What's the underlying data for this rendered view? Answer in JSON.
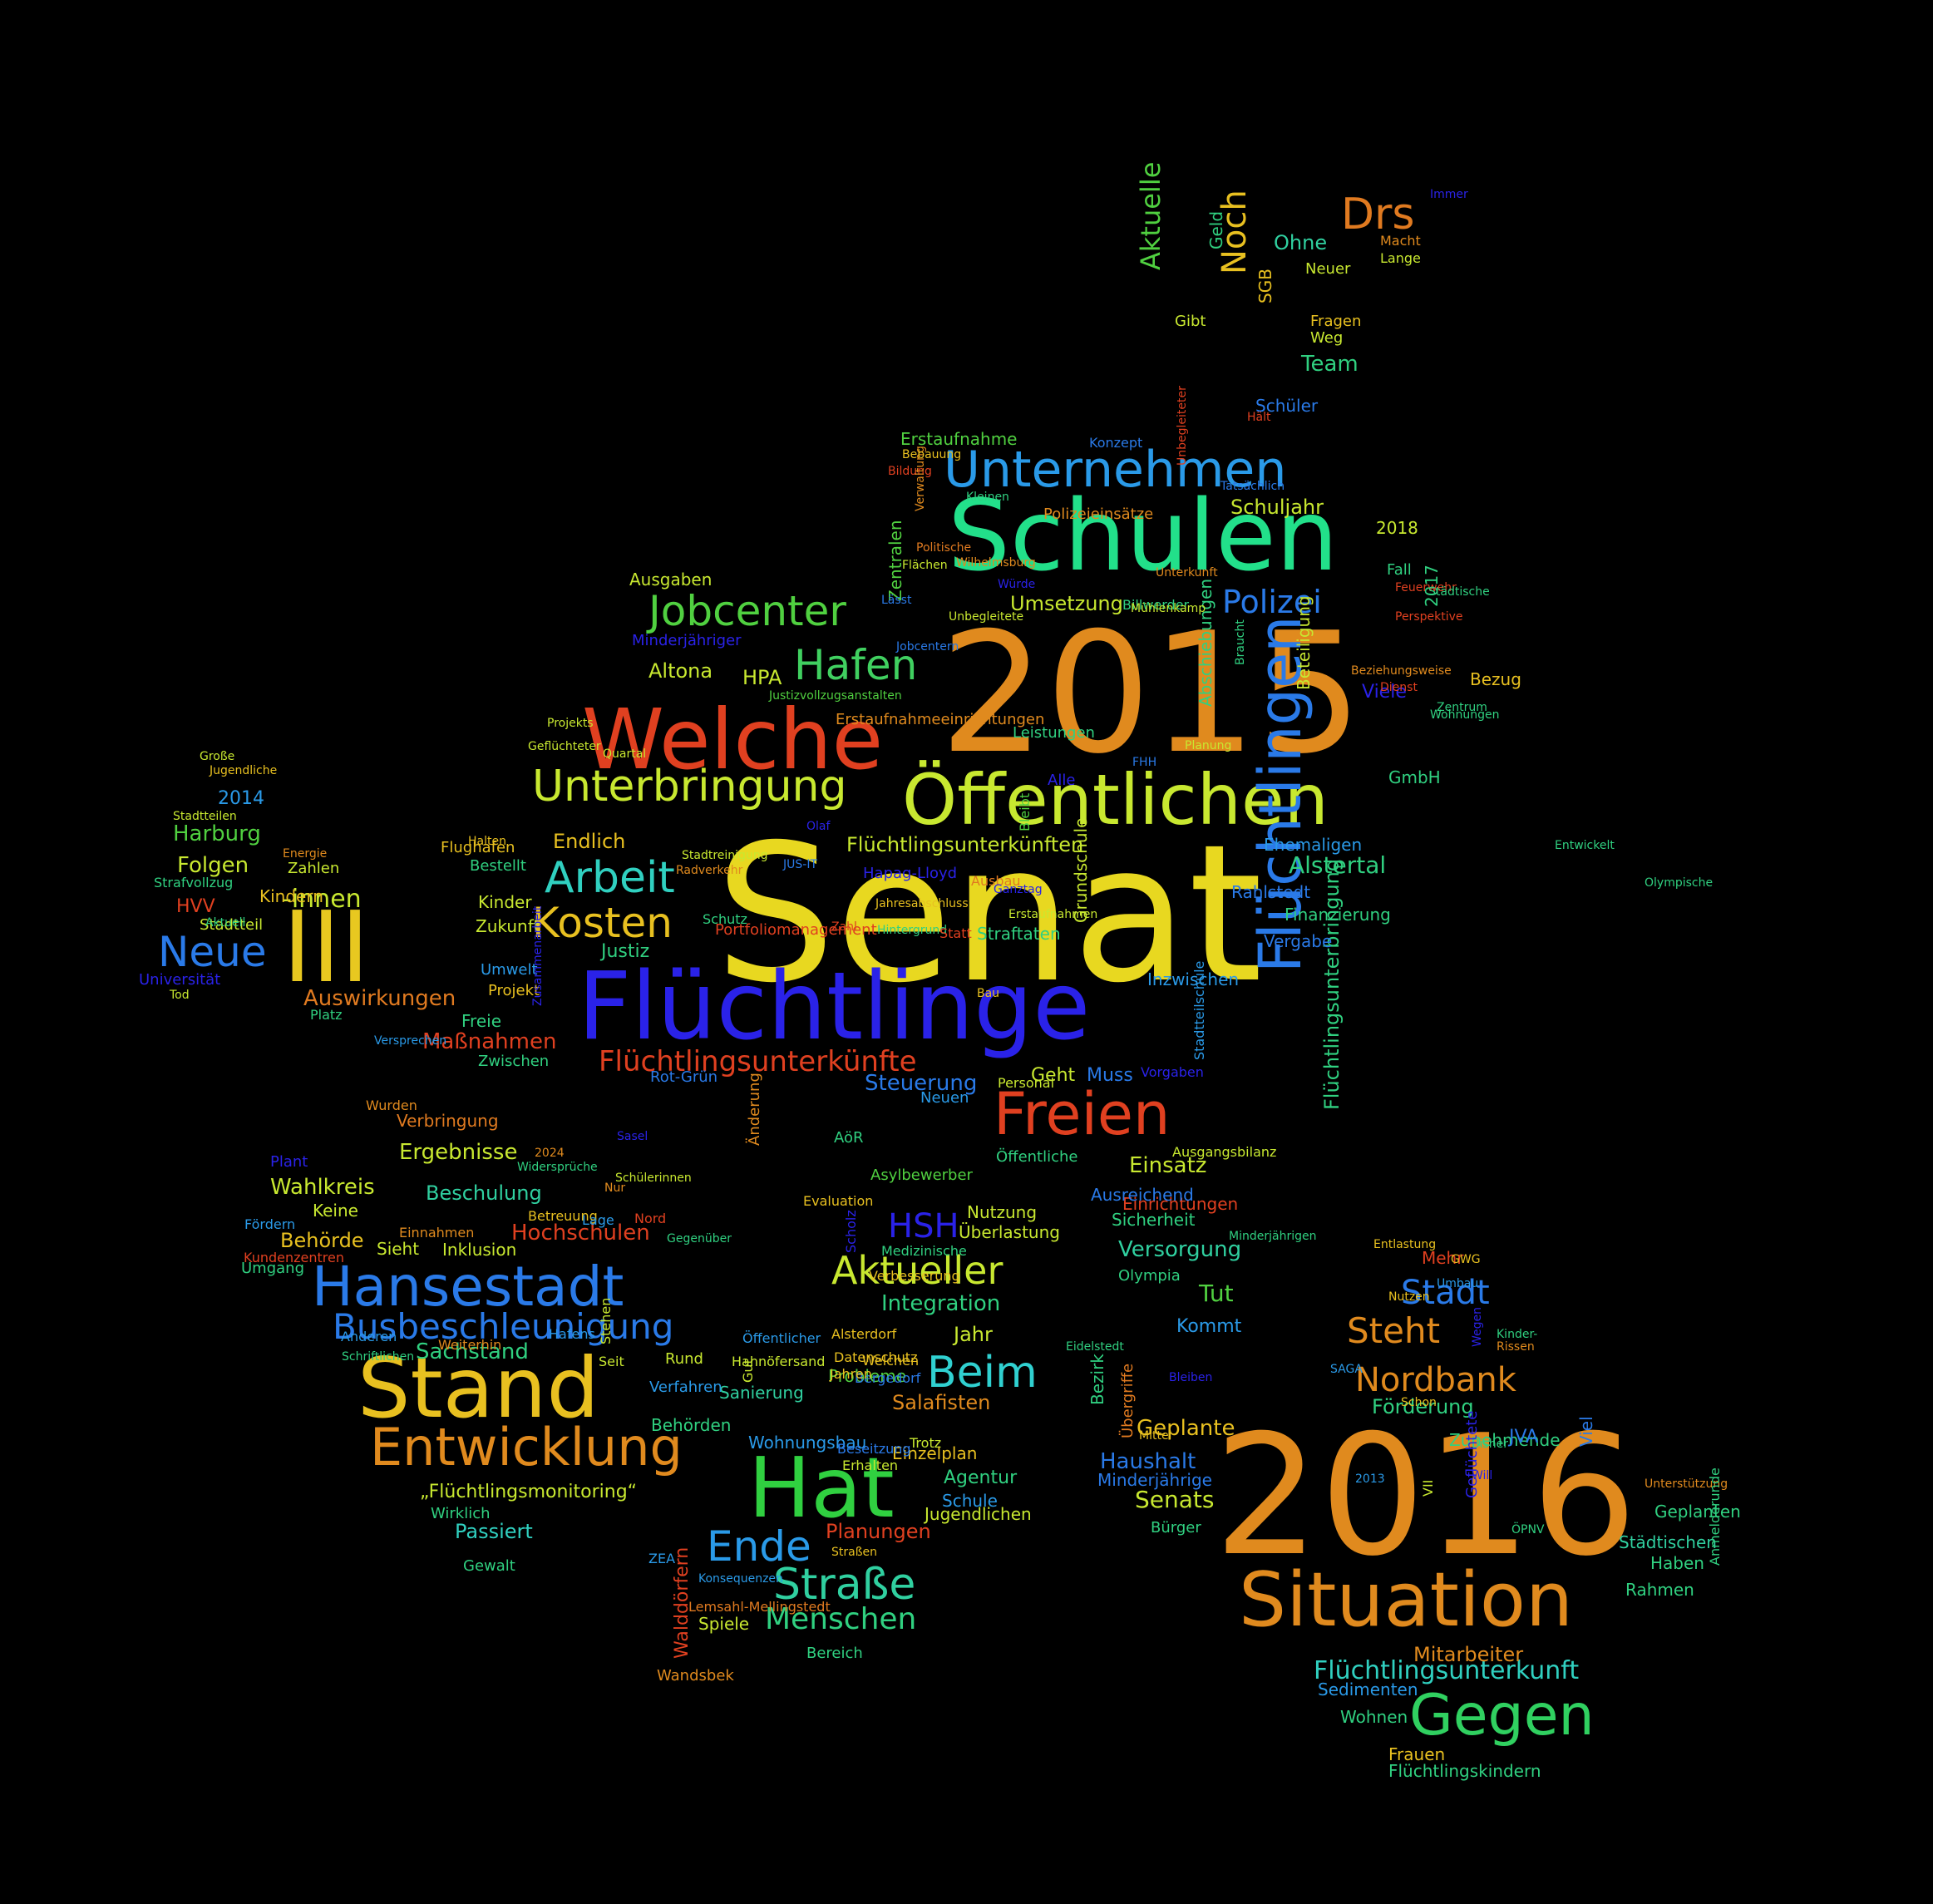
{
  "words": [
    {
      "text": "Senat",
      "color": "#e8d820"
    },
    {
      "text": "2015",
      "color": "#e08a1e"
    },
    {
      "text": "2016",
      "color": "#e08a1e"
    },
    {
      "text": "Flüchtlinge",
      "color": "#2a22e8"
    },
    {
      "text": "Schulen",
      "color": "#22e08a"
    },
    {
      "text": "Welche",
      "color": "#e04020"
    },
    {
      "text": "Öffentlichen",
      "color": "#c8e830"
    },
    {
      "text": "Flüchtlingen",
      "color": "#2a7ae8"
    },
    {
      "text": "Stand",
      "color": "#e8c020"
    },
    {
      "text": "Hat",
      "color": "#30d040"
    },
    {
      "text": "III",
      "color": "#e8c820"
    },
    {
      "text": "Situation",
      "color": "#e08a1e"
    },
    {
      "text": "Hansestadt",
      "color": "#2a7ae8"
    },
    {
      "text": "Unternehmen",
      "color": "#2a9ae8"
    },
    {
      "text": "Entwicklung",
      "color": "#e08a1e"
    },
    {
      "text": "Unterbringung",
      "color": "#c8e830"
    },
    {
      "text": "Freien",
      "color": "#e04020"
    },
    {
      "text": "Gegen",
      "color": "#30d060"
    },
    {
      "text": "Drs",
      "color": "#e07a20"
    },
    {
      "text": "Jobcenter",
      "color": "#50d040"
    },
    {
      "text": "Hafen",
      "color": "#40d060"
    },
    {
      "text": "Arbeit",
      "color": "#30d0c0"
    },
    {
      "text": "Kosten",
      "color": "#e8c020"
    },
    {
      "text": "Neue",
      "color": "#2a7ae8"
    },
    {
      "text": "Beim",
      "color": "#30d0d0"
    },
    {
      "text": "Straße",
      "color": "#30d0a0"
    },
    {
      "text": "Ende",
      "color": "#2a9ae8"
    },
    {
      "text": "Aktueller",
      "color": "#c8e830"
    },
    {
      "text": "Busbeschleunigung",
      "color": "#2a7ae8"
    },
    {
      "text": "Nordbank",
      "color": "#e08a1e"
    },
    {
      "text": "Steht",
      "color": "#e08a1e"
    },
    {
      "text": "Stadt",
      "color": "#2a7ae8"
    },
    {
      "text": "Polizei",
      "color": "#2a7ae8"
    },
    {
      "text": "Flüchtlingsunterkünfte",
      "color": "#e04020"
    },
    {
      "text": "Menschen",
      "color": "#30d080"
    },
    {
      "text": "Aktuelle",
      "color": "#50d040"
    },
    {
      "text": "Noch",
      "color": "#e8c020"
    },
    {
      "text": "HSH",
      "color": "#2a22e8"
    },
    {
      "text": "Flüchtlingsunterkunft",
      "color": "#30d0c0"
    },
    {
      "text": "Flüchtlingsunterkünften",
      "color": "#c8e830"
    },
    {
      "text": "Flüchtlingsunterbringung",
      "color": "#30d080"
    },
    {
      "text": "Senats",
      "color": "#c8e830"
    },
    {
      "text": "Haushalt",
      "color": "#2a7ae8"
    },
    {
      "text": "Geplante",
      "color": "#e8c020"
    },
    {
      "text": "Integration",
      "color": "#30d080"
    },
    {
      "text": "Hochschulen",
      "color": "#e04020"
    },
    {
      "text": "Harburg",
      "color": "#50d040"
    },
    {
      "text": "Folgen",
      "color": "#c8e830"
    },
    {
      "text": "-innen",
      "color": "#c8e830"
    },
    {
      "text": "Alstertal",
      "color": "#30d080"
    },
    {
      "text": "Auswirkungen",
      "color": "#e07a20"
    },
    {
      "text": "Maßnahmen",
      "color": "#e04020"
    },
    {
      "text": "Beschulung",
      "color": "#30d0a0"
    },
    {
      "text": "Wahlkreis",
      "color": "#c8e830"
    },
    {
      "text": "Ergebnisse",
      "color": "#c8e830"
    },
    {
      "text": "Versorgung",
      "color": "#30d0a0"
    },
    {
      "text": "Förderung",
      "color": "#30d080"
    },
    {
      "text": "Einsatz",
      "color": "#c8e830"
    },
    {
      "text": "Salafisten",
      "color": "#e08a1e"
    },
    {
      "text": "Planungen",
      "color": "#e04020"
    },
    {
      "text": "Mitarbeiter",
      "color": "#e08a1e"
    },
    {
      "text": "Endlich",
      "color": "#e8c020"
    },
    {
      "text": "Justiz",
      "color": "#30d080"
    },
    {
      "text": "Sachstand",
      "color": "#30d080"
    },
    {
      "text": "Behörde",
      "color": "#e8c020"
    },
    {
      "text": "Umsetzung",
      "color": "#c8e830"
    },
    {
      "text": "Schuljahr",
      "color": "#c8e830"
    },
    {
      "text": "Altona",
      "color": "#c8e830"
    },
    {
      "text": "HPA",
      "color": "#c8e830"
    },
    {
      "text": "Team",
      "color": "#30d080"
    },
    {
      "text": "Ohne",
      "color": "#30d0a0"
    },
    {
      "text": "Tut",
      "color": "#50d040"
    },
    {
      "text": "Kommt",
      "color": "#2a9ae8"
    },
    {
      "text": "Steuerung",
      "color": "#2a7ae8"
    },
    {
      "text": "Geht",
      "color": "#c8e830"
    },
    {
      "text": "Muss",
      "color": "#2a7ae8"
    },
    {
      "text": "Jahr",
      "color": "#c8e830"
    },
    {
      "text": "Passiert",
      "color": "#30d0c0"
    },
    {
      "text": "„Flüchtlingsmonitoring“",
      "color": "#c8e830"
    },
    {
      "text": "Probleme",
      "color": "#50d040"
    },
    {
      "text": "Sanierung",
      "color": "#30d0a0"
    },
    {
      "text": "Behörden",
      "color": "#30d080"
    },
    {
      "text": "Wohnungsbau",
      "color": "#2a9ae8"
    },
    {
      "text": "Einzelplan",
      "color": "#e8c020"
    },
    {
      "text": "Agentur",
      "color": "#30d080"
    },
    {
      "text": "Schule",
      "color": "#2a9ae8"
    },
    {
      "text": "Jugendlichen",
      "color": "#c8e830"
    },
    {
      "text": "Walddörfern",
      "color": "#e04020"
    },
    {
      "text": "Nutzung",
      "color": "#c8e830"
    },
    {
      "text": "Überlastung",
      "color": "#c8e830"
    },
    {
      "text": "Erstaufnahme",
      "color": "#50d040"
    },
    {
      "text": "Zentralen",
      "color": "#50d040"
    },
    {
      "text": "Flüchtlingskindern",
      "color": "#30d080"
    },
    {
      "text": "Frauen",
      "color": "#e8c020"
    },
    {
      "text": "Wohnen",
      "color": "#30d080"
    },
    {
      "text": "Sedimenten",
      "color": "#2a9ae8"
    },
    {
      "text": "Haben",
      "color": "#30d080"
    },
    {
      "text": "Rahmen",
      "color": "#30d080"
    },
    {
      "text": "Städtischen",
      "color": "#30d0a0"
    },
    {
      "text": "Geplanten",
      "color": "#30d080"
    },
    {
      "text": "Zunehmende",
      "color": "#30d080"
    },
    {
      "text": "Mehr",
      "color": "#e04020"
    },
    {
      "text": "Minderjährige",
      "color": "#2a7ae8"
    },
    {
      "text": "JVA",
      "color": "#2a7ae8"
    },
    {
      "text": "Viel",
      "color": "#2a7ae8"
    },
    {
      "text": "Wandsbek",
      "color": "#e08a1e"
    },
    {
      "text": "Bereich",
      "color": "#30d080"
    },
    {
      "text": "Spiele",
      "color": "#c8e830"
    },
    {
      "text": "Gewalt",
      "color": "#30d080"
    },
    {
      "text": "Wirklich",
      "color": "#30d080"
    },
    {
      "text": "Umgang",
      "color": "#30d080"
    },
    {
      "text": "Sieht",
      "color": "#c8e830"
    },
    {
      "text": "Inklusion",
      "color": "#c8e830"
    },
    {
      "text": "Keine",
      "color": "#c8e830"
    },
    {
      "text": "Plant",
      "color": "#2a22e8"
    },
    {
      "text": "Verbringung",
      "color": "#e07a20"
    },
    {
      "text": "Zwischen",
      "color": "#30d080"
    },
    {
      "text": "Freie",
      "color": "#30d080"
    },
    {
      "text": "Rot-Grün",
      "color": "#2a7ae8"
    },
    {
      "text": "Neuen",
      "color": "#2a9ae8"
    },
    {
      "text": "Öffentliche",
      "color": "#30d080"
    },
    {
      "text": "Bezirk",
      "color": "#30d080"
    },
    {
      "text": "Übergriffe",
      "color": "#e07a20"
    },
    {
      "text": "Sicherheit",
      "color": "#30d080"
    },
    {
      "text": "Einrichtungen",
      "color": "#e04020"
    },
    {
      "text": "Ausreichend",
      "color": "#2a7ae8"
    },
    {
      "text": "Olympia",
      "color": "#30d080"
    },
    {
      "text": "Zahlen",
      "color": "#c8e830"
    },
    {
      "text": "Strafvollzug",
      "color": "#30d080"
    },
    {
      "text": "HVV",
      "color": "#e04020"
    },
    {
      "text": "Stadtteil",
      "color": "#c8e830"
    },
    {
      "text": "Kindern",
      "color": "#e8c020"
    },
    {
      "text": "Kinder",
      "color": "#c8e830"
    },
    {
      "text": "Zukunft",
      "color": "#c8e830"
    },
    {
      "text": "Umwelt",
      "color": "#2a9ae8"
    },
    {
      "text": "Projekt",
      "color": "#e8c020"
    },
    {
      "text": "Flughafen",
      "color": "#e8c020"
    },
    {
      "text": "Bestellt",
      "color": "#30d080"
    },
    {
      "text": "Universität",
      "color": "#2a22e8"
    },
    {
      "text": "2014",
      "color": "#2a9ae8"
    },
    {
      "text": "Stadtteilen",
      "color": "#c8e830"
    },
    {
      "text": "Große",
      "color": "#c8e830"
    },
    {
      "text": "Jugendliche",
      "color": "#e8c020"
    },
    {
      "text": "Abschiebungen",
      "color": "#30d080"
    },
    {
      "text": "Beteiligung",
      "color": "#c8e830"
    },
    {
      "text": "2017",
      "color": "#30d080"
    },
    {
      "text": "Bezug",
      "color": "#e8c020"
    },
    {
      "text": "Viele",
      "color": "#2a22e8"
    },
    {
      "text": "GmbH",
      "color": "#30d080"
    },
    {
      "text": "Ehemaligen",
      "color": "#2a9ae8"
    },
    {
      "text": "Rahlstedt",
      "color": "#2a7ae8"
    },
    {
      "text": "Finanzierung",
      "color": "#30d080"
    },
    {
      "text": "Vergabe",
      "color": "#2a7ae8"
    },
    {
      "text": "Inzwischen",
      "color": "#2a9ae8"
    },
    {
      "text": "Grundschule",
      "color": "#c8e830"
    },
    {
      "text": "Straftaten",
      "color": "#30d080"
    },
    {
      "text": "Alle",
      "color": "#2a22e8"
    },
    {
      "text": "Leistungen",
      "color": "#30d080"
    },
    {
      "text": "2018",
      "color": "#c8e830"
    },
    {
      "text": "Fall",
      "color": "#30d080"
    },
    {
      "text": "Kleinen",
      "color": "#30d080"
    },
    {
      "text": "Polizeieinsätze",
      "color": "#e08a1e"
    },
    {
      "text": "Billwerder",
      "color": "#30d080"
    },
    {
      "text": "Macht",
      "color": "#e08a1e"
    },
    {
      "text": "Lange",
      "color": "#c8e830"
    },
    {
      "text": "Neuer",
      "color": "#c8e830"
    },
    {
      "text": "Immer",
      "color": "#2a22e8"
    },
    {
      "text": "Geld",
      "color": "#30d080"
    },
    {
      "text": "SGB",
      "color": "#e8c020"
    },
    {
      "text": "Schüler",
      "color": "#2a7ae8"
    },
    {
      "text": "Fragen",
      "color": "#e8c020"
    },
    {
      "text": "Weg",
      "color": "#c8e830"
    },
    {
      "text": "Gibt",
      "color": "#c8e830"
    },
    {
      "text": "Konzept",
      "color": "#2a7ae8"
    },
    {
      "text": "Ausgaben",
      "color": "#c8e830"
    },
    {
      "text": "Minderjähriger",
      "color": "#2a22e8"
    },
    {
      "text": "Beziehungsweise",
      "color": "#e08a1e"
    },
    {
      "text": "Erstaufnahmeeinrichtungen",
      "color": "#e08a1e"
    },
    {
      "text": "Hapag-Lloyd",
      "color": "#2a22e8"
    },
    {
      "text": "Ausbau",
      "color": "#e07a20"
    },
    {
      "text": "Schutz",
      "color": "#30d080"
    },
    {
      "text": "Hintergrund",
      "color": "#30d080"
    },
    {
      "text": "Statt",
      "color": "#e04020"
    },
    {
      "text": "Bau",
      "color": "#e8c020"
    },
    {
      "text": "Bleibt",
      "color": "#50d040"
    },
    {
      "text": "Personal",
      "color": "#c8e830"
    },
    {
      "text": "Stadtteilschule",
      "color": "#2a9ae8"
    },
    {
      "text": "Vorgaben",
      "color": "#2a22e8"
    },
    {
      "text": "Ausgangsbilanz",
      "color": "#c8e830"
    },
    {
      "text": "Asylbewerber",
      "color": "#50d040"
    },
    {
      "text": "AöR",
      "color": "#30d080"
    },
    {
      "text": "Änderung",
      "color": "#e08a1e"
    },
    {
      "text": "Evaluation",
      "color": "#e8c020"
    },
    {
      "text": "Scholz",
      "color": "#2a22e8"
    },
    {
      "text": "Medizinische",
      "color": "#30d080"
    },
    {
      "text": "Verbesserung",
      "color": "#e8c020"
    },
    {
      "text": "Alsterdorf",
      "color": "#e8c020"
    },
    {
      "text": "Datenschutz",
      "color": "#e8c020"
    },
    {
      "text": "Welchen",
      "color": "#e8c020"
    },
    {
      "text": "Bergedorf",
      "color": "#2a7ae8"
    },
    {
      "text": "Beseitzung",
      "color": "#2a7ae8"
    },
    {
      "text": "Erhalten",
      "color": "#c8e830"
    },
    {
      "text": "Jahren",
      "color": "#e8c020"
    },
    {
      "text": "Gut",
      "color": "#c8e830"
    },
    {
      "text": "Trotz",
      "color": "#c8e830"
    },
    {
      "text": "Straßen",
      "color": "#e8c020"
    },
    {
      "text": "Lemsahl-Mellingstedt",
      "color": "#e07a20"
    },
    {
      "text": "ZEA",
      "color": "#2a9ae8"
    },
    {
      "text": "Konsequenzen",
      "color": "#2a9ae8"
    },
    {
      "text": "Verfahren",
      "color": "#2a9ae8"
    },
    {
      "text": "Rund",
      "color": "#c8e830"
    },
    {
      "text": "Seit",
      "color": "#c8e830"
    },
    {
      "text": "Hahnöfersand",
      "color": "#c8e830"
    },
    {
      "text": "Stehen",
      "color": "#c8e830"
    },
    {
      "text": "Öffentlicher",
      "color": "#2a9ae8"
    },
    {
      "text": "Anderen",
      "color": "#2a9ae8"
    },
    {
      "text": "Weiterhin",
      "color": "#e08a1e"
    },
    {
      "text": "Hafens",
      "color": "#2a9ae8"
    },
    {
      "text": "Schriftlichen",
      "color": "#30d080"
    },
    {
      "text": "Kundenzentren",
      "color": "#e04020"
    },
    {
      "text": "Fördern",
      "color": "#2a9ae8"
    },
    {
      "text": "Einnahmen",
      "color": "#e08a1e"
    },
    {
      "text": "Betreuung",
      "color": "#e8c020"
    },
    {
      "text": "Lage",
      "color": "#2a9ae8"
    },
    {
      "text": "Nord",
      "color": "#e04020"
    },
    {
      "text": "Gegenüber",
      "color": "#30d080"
    },
    {
      "text": "Schülerinnen",
      "color": "#c8e830"
    },
    {
      "text": "Nur",
      "color": "#e08a1e"
    },
    {
      "text": "Widersprüche",
      "color": "#30d080"
    },
    {
      "text": "Sasel",
      "color": "#2a22e8"
    },
    {
      "text": "2024",
      "color": "#e08a1e"
    },
    {
      "text": "Wurden",
      "color": "#e08a1e"
    },
    {
      "text": "Versprechen",
      "color": "#2a9ae8"
    },
    {
      "text": "Zusammenarbeit",
      "color": "#2a22e8"
    },
    {
      "text": "Platz",
      "color": "#30d080"
    },
    {
      "text": "Tod",
      "color": "#c8e830"
    },
    {
      "text": "Aktuell",
      "color": "#30d080"
    },
    {
      "text": "Energie",
      "color": "#e08a1e"
    },
    {
      "text": "Halten",
      "color": "#e8c020"
    },
    {
      "text": "Radverkehr",
      "color": "#e08a1e"
    },
    {
      "text": "Stadtreinigung",
      "color": "#c8e830"
    },
    {
      "text": "Olaf",
      "color": "#2a22e8"
    },
    {
      "text": "Portfoliomanagement",
      "color": "#e04020"
    },
    {
      "text": "Zahl",
      "color": "#e04020"
    },
    {
      "text": "Erstaufnahmen",
      "color": "#c8e830"
    },
    {
      "text": "Jahresabschluss",
      "color": "#e8c020"
    },
    {
      "text": "Ganztag",
      "color": "#2a22e8"
    },
    {
      "text": "JUS-IT",
      "color": "#2a7ae8"
    },
    {
      "text": "Justizvollzugsanstalten",
      "color": "#50d040"
    },
    {
      "text": "Quartal",
      "color": "#c8e830"
    },
    {
      "text": "Geflüchteter",
      "color": "#c8e830"
    },
    {
      "text": "Projekts",
      "color": "#c8e830"
    },
    {
      "text": "Jobcentern",
      "color": "#2a7ae8"
    },
    {
      "text": "Unbegleitete",
      "color": "#c8e830"
    },
    {
      "text": "Lässt",
      "color": "#2a7ae8"
    },
    {
      "text": "Würde",
      "color": "#2a22e8"
    },
    {
      "text": "Wilhelmsburg",
      "color": "#e08a1e"
    },
    {
      "text": "Politische",
      "color": "#e07a20"
    },
    {
      "text": "Flächen",
      "color": "#c8e830"
    },
    {
      "text": "Bildung",
      "color": "#e04020"
    },
    {
      "text": "Verwaltung",
      "color": "#e08a1e"
    },
    {
      "text": "Unterkunft",
      "color": "#e08a1e"
    },
    {
      "text": "Bebauung",
      "color": "#e8c020"
    },
    {
      "text": "Unbegleiteter",
      "color": "#e04020"
    },
    {
      "text": "Mühlenkamp",
      "color": "#c8e830"
    },
    {
      "text": "Tatsächlich",
      "color": "#2a7ae8"
    },
    {
      "text": "Hält",
      "color": "#e04020"
    },
    {
      "text": "Feuerwehr",
      "color": "#e04020"
    },
    {
      "text": "Perspektive",
      "color": "#e04020"
    },
    {
      "text": "Städtische",
      "color": "#30d080"
    },
    {
      "text": "Dienst",
      "color": "#e04020"
    },
    {
      "text": "Zentrum",
      "color": "#30d080"
    },
    {
      "text": "Wohnungen",
      "color": "#30d080"
    },
    {
      "text": "Braucht",
      "color": "#30d080"
    },
    {
      "text": "Planung",
      "color": "#c8e830"
    },
    {
      "text": "FHH",
      "color": "#2a7ae8"
    },
    {
      "text": "Entwickelt",
      "color": "#30d080"
    },
    {
      "text": "Olympische",
      "color": "#30d080"
    },
    {
      "text": "Minderjährigen",
      "color": "#30d080"
    },
    {
      "text": "Entlastung",
      "color": "#e8c020"
    },
    {
      "text": "GWG",
      "color": "#e8c020"
    },
    {
      "text": "Umbau",
      "color": "#2a9ae8"
    },
    {
      "text": "Nutzen",
      "color": "#e8c020"
    },
    {
      "text": "Wegen",
      "color": "#2a22e8"
    },
    {
      "text": "Kinder-",
      "color": "#30d080"
    },
    {
      "text": "Rissen",
      "color": "#e08a1e"
    },
    {
      "text": "SAGA",
      "color": "#2a9ae8"
    },
    {
      "text": "Schon",
      "color": "#e8c020"
    },
    {
      "text": "Eidelstedt",
      "color": "#30d080"
    },
    {
      "text": "Bleiben",
      "color": "#2a22e8"
    },
    {
      "text": "Mittel",
      "color": "#e8c020"
    },
    {
      "text": "Bürger",
      "color": "#30d080"
    },
    {
      "text": "Bisher",
      "color": "#30d080"
    },
    {
      "text": "Will",
      "color": "#2a22e8"
    },
    {
      "text": "Unterstützung",
      "color": "#e08a1e"
    },
    {
      "text": "2013",
      "color": "#2a9ae8"
    },
    {
      "text": "VII",
      "color": "#c8e830"
    },
    {
      "text": "Geflüchtete",
      "color": "#2a22e8"
    },
    {
      "text": "ÖPNV",
      "color": "#30d080"
    },
    {
      "text": "Anmelderunde",
      "color": "#30d080"
    }
  ]
}
